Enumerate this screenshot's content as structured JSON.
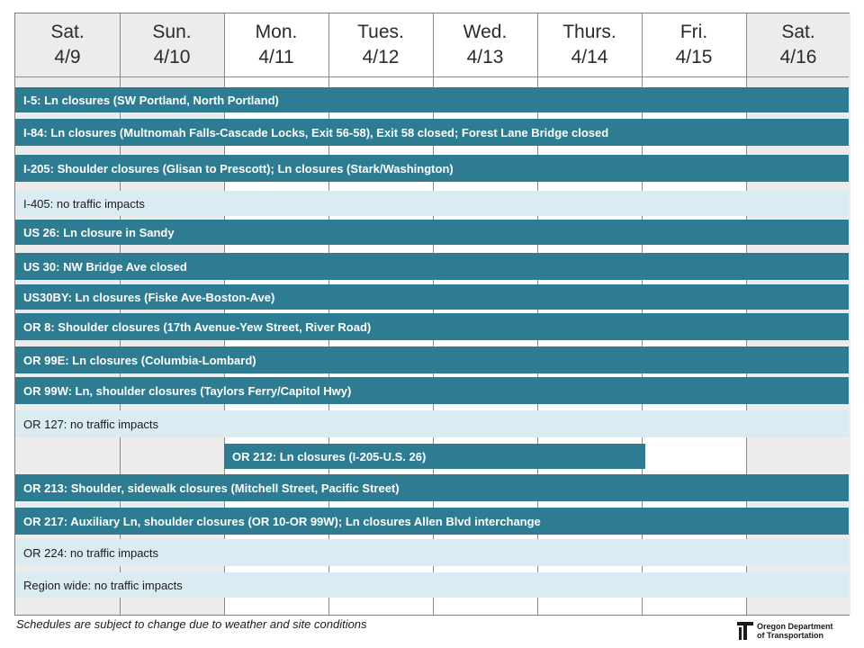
{
  "days": [
    {
      "day": "Sat.",
      "date": "4/9",
      "weekend": true
    },
    {
      "day": "Sun.",
      "date": "4/10",
      "weekend": true
    },
    {
      "day": "Mon.",
      "date": "4/11",
      "weekend": false
    },
    {
      "day": "Tues.",
      "date": "4/12",
      "weekend": false
    },
    {
      "day": "Wed.",
      "date": "4/13",
      "weekend": false
    },
    {
      "day": "Thurs.",
      "date": "4/14",
      "weekend": false
    },
    {
      "day": "Fri.",
      "date": "4/15",
      "weekend": false
    },
    {
      "day": "Sat.",
      "date": "4/16",
      "weekend": true
    }
  ],
  "closures": [
    {
      "text": "I-5: Ln closures (SW Portland, North Portland)",
      "impact": true,
      "start_day": 0,
      "end_day": 7
    },
    {
      "text": "I-84: Ln closures (Multnomah Falls-Cascade Locks, Exit 56-58), Exit 58 closed; Forest Lane Bridge closed",
      "impact": true,
      "start_day": 0,
      "end_day": 7
    },
    {
      "text": "I-205: Shoulder closures (Glisan to Prescott); Ln closures (Stark/Washington)",
      "impact": true,
      "start_day": 0,
      "end_day": 7
    },
    {
      "text": "I-405: no traffic impacts",
      "impact": false,
      "start_day": 0,
      "end_day": 7
    },
    {
      "text": "US 26: Ln closure in Sandy",
      "impact": true,
      "start_day": 0,
      "end_day": 7
    },
    {
      "text": "US 30: NW Bridge Ave closed",
      "impact": true,
      "start_day": 0,
      "end_day": 7
    },
    {
      "text": "US30BY: Ln closures (Fiske Ave-Boston-Ave)",
      "impact": true,
      "start_day": 0,
      "end_day": 7
    },
    {
      "text": "OR 8: Shoulder closures (17th Avenue-Yew Street, River Road)",
      "impact": true,
      "start_day": 0,
      "end_day": 7
    },
    {
      "text": "OR 99E: Ln closures (Columbia-Lombard)",
      "impact": true,
      "start_day": 0,
      "end_day": 7
    },
    {
      "text": "OR 99W: Ln, shoulder closures (Taylors Ferry/Capitol Hwy)",
      "impact": true,
      "start_day": 0,
      "end_day": 7
    },
    {
      "text": "OR 127: no traffic impacts",
      "impact": false,
      "start_day": 0,
      "end_day": 7
    },
    {
      "text": "OR 212: Ln closures (I-205-U.S. 26)",
      "impact": true,
      "start_day": 2,
      "end_day": 6
    },
    {
      "text": "OR 213: Shoulder, sidewalk closures (Mitchell Street, Pacific Street)",
      "impact": true,
      "start_day": 0,
      "end_day": 7
    },
    {
      "text": "OR 217: Auxiliary Ln, shoulder closures (OR 10-OR 99W); Ln closures Allen Blvd interchange",
      "impact": true,
      "start_day": 0,
      "end_day": 7
    },
    {
      "text": "OR 224: no traffic impacts",
      "impact": false,
      "start_day": 0,
      "end_day": 7
    },
    {
      "text": "Region wide: no traffic impacts",
      "impact": false,
      "start_day": 0,
      "end_day": 7
    }
  ],
  "footnote": "Schedules are subject to change due to weather and site conditions",
  "logo": {
    "line1": "Oregon Department",
    "line2": "of Transportation",
    "icon": "odot-logo-icon"
  },
  "colors": {
    "impact_bar": "#2e7c91",
    "no_impact_bar": "#daebf1",
    "weekend_column": "#ececec",
    "grid_line": "#8a8a8a"
  }
}
